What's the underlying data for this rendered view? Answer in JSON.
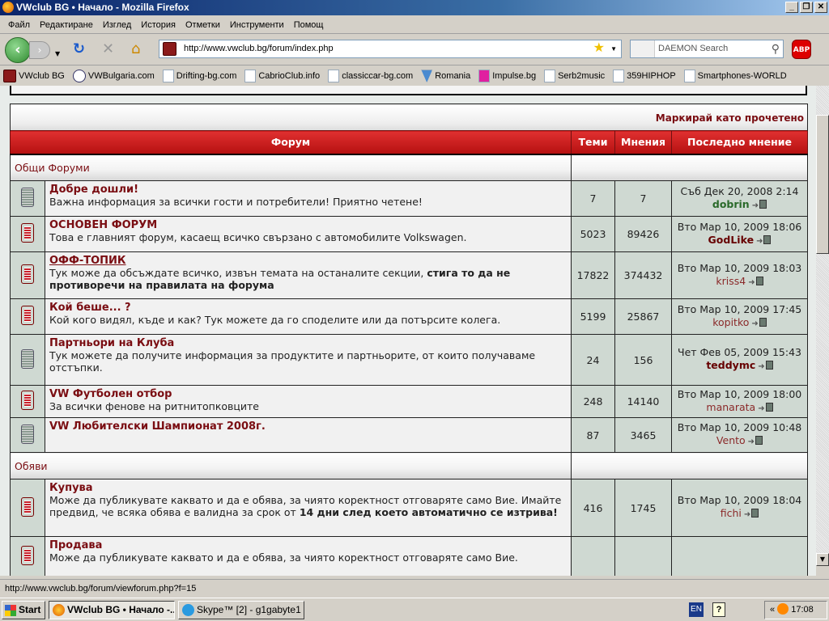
{
  "window": {
    "title": "VWclub BG • Начало - Mozilla Firefox",
    "controls": [
      "_",
      "❐",
      "✕"
    ]
  },
  "menu": [
    "Файл",
    "Редактиране",
    "Изглед",
    "История",
    "Отметки",
    "Инструменти",
    "Помощ"
  ],
  "nav": {
    "url": "http://www.vwclub.bg/forum/index.php",
    "search_placeholder": "DAEMON Search",
    "abp": "ABP"
  },
  "bookmarks": [
    {
      "label": "VWclub BG",
      "icon": "vw"
    },
    {
      "label": "VWBulgaria.com",
      "icon": "vw2"
    },
    {
      "label": "Drifting-bg.com",
      "icon": ""
    },
    {
      "label": "CabrioClub.info",
      "icon": ""
    },
    {
      "label": "classiccar-bg.com",
      "icon": ""
    },
    {
      "label": "Romania",
      "icon": "rom"
    },
    {
      "label": "Impulse.bg",
      "icon": "imp"
    },
    {
      "label": "Serb2music",
      "icon": ""
    },
    {
      "label": "359HIPHOP",
      "icon": ""
    },
    {
      "label": "Smartphones-WORLD",
      "icon": ""
    }
  ],
  "forum": {
    "mark_read": "Маркирай като прочетено",
    "headers": {
      "forum": "Форум",
      "topics": "Теми",
      "posts": "Мнения",
      "last": "Последно мнение"
    },
    "categories": [
      {
        "name": "Общи Форуми",
        "forums": [
          {
            "title": "Добре дошли!",
            "desc": "Важна информация за всички гости и потребители! Приятно четене!",
            "topics": "7",
            "posts": "7",
            "last_date": "Съб Дек 20, 2008 2:14",
            "last_user": "dobrin",
            "user_style": "green",
            "status": "old"
          },
          {
            "title": "ОСНОВЕН ФОРУМ",
            "desc": "Това е главният форум, касаещ всичко свързано с автомобилите Volkswagen.",
            "topics": "5023",
            "posts": "89426",
            "last_date": "Вто Мар 10, 2009 18:06",
            "last_user": "GodLike",
            "user_style": "dark",
            "status": "new"
          },
          {
            "title": "ОФФ-ТОПИК",
            "desc": "Тук може да обсъждате всичко, извън темата на останалите секции, ",
            "desc_bold": "стига то да не противоречи на правилата на форума",
            "topics": "17822",
            "posts": "374432",
            "last_date": "Вто Мар 10, 2009 18:03",
            "last_user": "kriss4",
            "user_style": "",
            "status": "new",
            "hover": true
          },
          {
            "title": "Кой беше... ?",
            "desc": "Кой кого видял, къде и как? Тук можете да го споделите или да потърсите колега.",
            "topics": "5199",
            "posts": "25867",
            "last_date": "Вто Мар 10, 2009 17:45",
            "last_user": "kopitko",
            "user_style": "",
            "status": "new"
          },
          {
            "title": "Партньори на Клуба",
            "desc": "Тук можете да получите информация за продуктите и партньорите, от които получаваме отстъпки.",
            "topics": "24",
            "posts": "156",
            "last_date": "Чет Фев 05, 2009 15:43",
            "last_user": "teddymc",
            "user_style": "dark",
            "status": "old"
          },
          {
            "title": "VW Футболен отбор",
            "desc": "За всички фенове на ритнитопковците",
            "topics": "248",
            "posts": "14140",
            "last_date": "Вто Мар 10, 2009 18:00",
            "last_user": "manarata",
            "user_style": "",
            "status": "new"
          },
          {
            "title": "VW Любителски Шампионат 2008г.",
            "desc": "",
            "topics": "87",
            "posts": "3465",
            "last_date": "Вто Мар 10, 2009 10:48",
            "last_user": "Vento",
            "user_style": "",
            "status": "old"
          }
        ]
      },
      {
        "name": "Обяви",
        "forums": [
          {
            "title": "Купува",
            "desc": "Може да публикувате каквато и да е обява, за чиято коректност отговаряте само Вие. Имайте предвид, че всяка обява е валидна за срок от ",
            "desc_bold": "14 дни след което автоматично се изтрива!",
            "topics": "416",
            "posts": "1745",
            "last_date": "Вто Мар 10, 2009 18:04",
            "last_user": "fichi",
            "user_style": "",
            "status": "new"
          },
          {
            "title": "Продава",
            "desc": "Може да публикувате каквато и да е обява, за чиято коректност отговаряте само Вие.",
            "topics": "",
            "posts": "",
            "last_date": "",
            "last_user": "",
            "user_style": "",
            "status": "new"
          }
        ]
      }
    ]
  },
  "status": "http://www.vwclub.bg/forum/viewforum.php?f=15",
  "taskbar": {
    "start": "Start",
    "tasks": [
      "VWclub BG • Начало -...",
      "Skype™ [2] - g1gabyte1"
    ],
    "lang": "EN",
    "clock": "17:08"
  }
}
